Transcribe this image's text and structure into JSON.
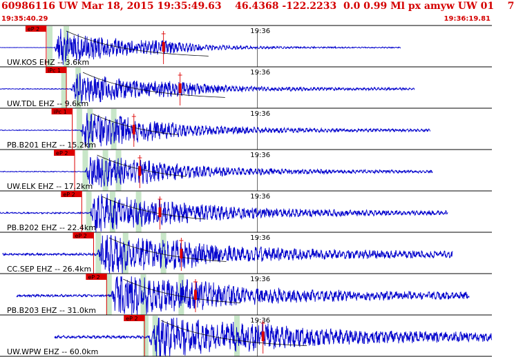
{
  "header": {
    "title": "60986116 UW Mar 18, 2015 19:35:49.63    46.4368 -122.2233  0.0 0.99 Ml px amyw UW 01    7",
    "start_time": "19:35:40.29",
    "end_time": "19:36:19.81"
  },
  "colors": {
    "trace": "#0000cc",
    "pick": "#dd0000",
    "window": "#c8e6c8",
    "divider": "#000000",
    "curve": "#000000"
  },
  "chart_data": {
    "type": "line",
    "minute_label": "19:36",
    "traces": [
      {
        "name": "UW.KOS EHZ -- 3.6km",
        "pick_label": "eP 2",
        "pick_time": 1.9,
        "amp_time": 11.8,
        "onset": 2.6,
        "end": 31.8,
        "peak": 1.0,
        "noise": 0.02,
        "windows": [
          2.2,
          3.6
        ],
        "curve": true
      },
      {
        "name": "UW.TDL EHZ -- 9.6km",
        "pick_label": "iPc 1",
        "pick_time": 3.6,
        "amp_time": 13.2,
        "onset": 4.0,
        "end": 33.0,
        "peak": 0.85,
        "noise": 0.05,
        "windows": [
          3.4,
          4.6
        ],
        "curve": true
      },
      {
        "name": "PB.B201 EHZ -- 15.2km",
        "pick_label": "iPc 1",
        "pick_time": 4.1,
        "amp_time": 9.3,
        "onset": 4.8,
        "end": 34.3,
        "peak": 0.9,
        "noise": 0.05,
        "windows": [
          4.7,
          5.6,
          7.6
        ],
        "curve": true
      },
      {
        "name": "UW.ELK EHZ -- 17.2km",
        "pick_label": "eP 2",
        "pick_time": 4.3,
        "amp_time": 9.8,
        "onset": 5.2,
        "end": 34.5,
        "peak": 0.85,
        "noise": 0.05,
        "windows": [
          5.2,
          6.9,
          8.0
        ],
        "curve": true
      },
      {
        "name": "PB.B202 EHZ -- 22.4km",
        "pick_label": "eP 2",
        "pick_time": 4.9,
        "amp_time": 11.5,
        "onset": 5.6,
        "end": 35.8,
        "peak": 1.0,
        "noise": 0.09,
        "windows": [
          5.5,
          7.5,
          9.7
        ],
        "curve": true
      },
      {
        "name": "CC.SEP EHZ -- 26.4km",
        "pick_label": "eP 2",
        "pick_time": 5.9,
        "amp_time": 13.3,
        "onset": 6.2,
        "end": 36.2,
        "peak": 1.0,
        "noise": 0.14,
        "windows": [
          6.3,
          8.6,
          11.8
        ],
        "curve": true
      },
      {
        "name": "PB.B203 EHZ -- 31.0km",
        "pick_label": "eP 2",
        "pick_time": 7.0,
        "amp_time": 14.5,
        "onset": 7.4,
        "end": 37.6,
        "peak": 1.0,
        "noise": 0.15,
        "windows": [
          7.2,
          10.1,
          13.3
        ],
        "curve": true
      },
      {
        "name": "UW.WPW EHZ -- 60.0km",
        "pick_label": "eP 2",
        "pick_time": 10.2,
        "amp_time": 20.2,
        "onset": 10.6,
        "end": 39.5,
        "peak": 1.0,
        "noise": 0.18,
        "windows": [
          10.3,
          11.1,
          18.0
        ],
        "curve": true
      }
    ]
  }
}
